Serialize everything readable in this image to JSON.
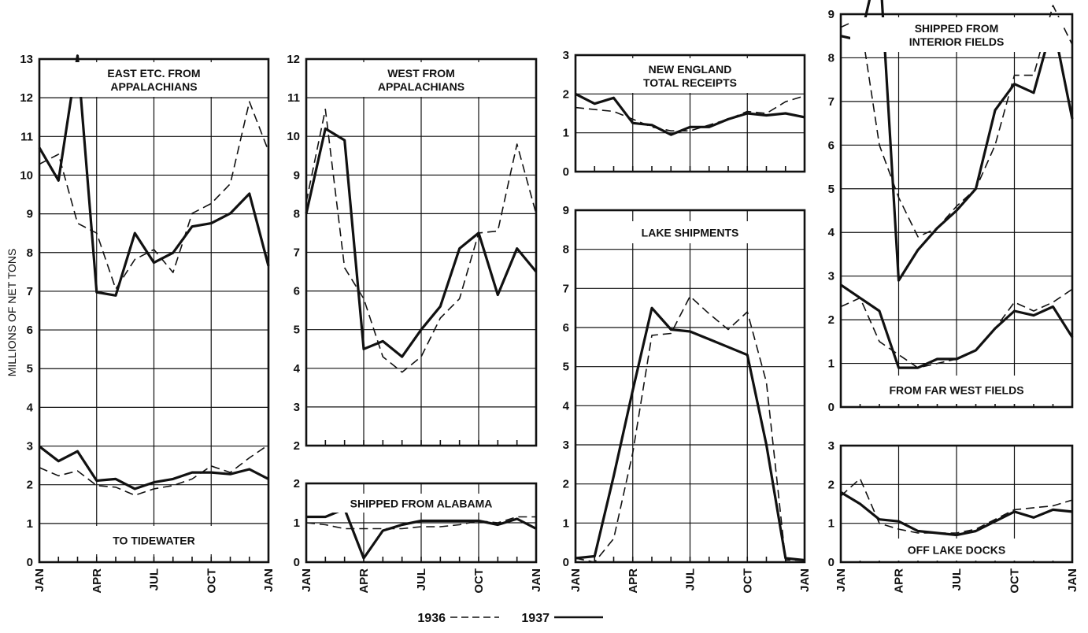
{
  "y_axis_label": "MILLIONS OF NET TONS",
  "legend": [
    {
      "label": "1936",
      "style": "dashed"
    },
    {
      "label": "1937",
      "style": "solid"
    }
  ],
  "x_tick_labels": [
    "JAN",
    "APR",
    "JUL",
    "OCT",
    "JAN"
  ],
  "chart_data": [
    {
      "type": "line",
      "title": "EAST ETC. FROM APPALACHIANS",
      "title_lines": [
        "EAST ETC. FROM",
        "APPALACHIANS"
      ],
      "months": [
        0,
        1,
        2,
        3,
        4,
        5,
        6,
        7,
        8,
        9,
        10,
        11,
        12
      ],
      "ylim": [
        6,
        13
      ],
      "yticks": [
        6,
        7,
        8,
        9,
        10,
        11,
        12,
        13
      ],
      "grid": true,
      "series": [
        {
          "name": "1936",
          "style": "dashed",
          "values": [
            9.8,
            10.1,
            8.0,
            7.7,
            6.0,
            6.9,
            7.2,
            6.5,
            8.3,
            8.6,
            9.2,
            11.7,
            10.2
          ]
        },
        {
          "name": "1937",
          "style": "solid",
          "values": [
            10.3,
            9.3,
            13.1,
            5.9,
            5.8,
            7.7,
            6.8,
            7.1,
            7.9,
            8.0,
            8.3,
            8.9,
            6.7
          ]
        }
      ]
    },
    {
      "type": "line",
      "title": "TO TIDEWATER",
      "title_lines": [
        "TO TIDEWATER"
      ],
      "months": [
        0,
        1,
        2,
        3,
        4,
        5,
        6,
        7,
        8,
        9,
        10,
        11,
        12
      ],
      "ylim": [
        0,
        5
      ],
      "yticks": [
        0,
        1,
        2,
        3,
        4,
        5
      ],
      "grid": true,
      "series": [
        {
          "name": "1936",
          "style": "dashed",
          "values": [
            2.9,
            2.65,
            2.8,
            2.35,
            2.3,
            2.05,
            2.25,
            2.35,
            2.55,
            2.95,
            2.75,
            3.2,
            3.6
          ]
        },
        {
          "name": "1937",
          "style": "solid",
          "values": [
            3.55,
            3.1,
            3.4,
            2.5,
            2.55,
            2.25,
            2.45,
            2.55,
            2.75,
            2.75,
            2.7,
            2.85,
            2.55
          ]
        }
      ]
    },
    {
      "type": "line",
      "title": "WEST FROM APPALACHIANS",
      "title_lines": [
        "WEST FROM",
        "APPALACHIANS"
      ],
      "months": [
        0,
        1,
        2,
        3,
        4,
        5,
        6,
        7,
        8,
        9,
        10,
        11,
        12
      ],
      "ylim": [
        2,
        12
      ],
      "yticks": [
        2,
        3,
        4,
        5,
        6,
        7,
        8,
        9,
        10,
        11,
        12
      ],
      "grid": true,
      "series": [
        {
          "name": "1936",
          "style": "dashed",
          "values": [
            8.3,
            10.7,
            6.6,
            5.8,
            4.3,
            3.9,
            4.3,
            5.3,
            5.8,
            7.5,
            7.55,
            9.8,
            8.0
          ]
        },
        {
          "name": "1937",
          "style": "solid",
          "values": [
            8.0,
            10.2,
            9.9,
            4.5,
            4.7,
            4.3,
            5.0,
            5.6,
            7.1,
            7.5,
            5.9,
            7.1,
            6.5
          ]
        }
      ]
    },
    {
      "type": "line",
      "title": "SHIPPED FROM ALABAMA",
      "title_lines": [
        "SHIPPED FROM ALABAMA"
      ],
      "months": [
        0,
        1,
        2,
        3,
        4,
        5,
        6,
        7,
        8,
        9,
        10,
        11,
        12
      ],
      "ylim": [
        0,
        2
      ],
      "yticks": [
        0,
        1,
        2
      ],
      "grid": true,
      "series": [
        {
          "name": "1936",
          "style": "dashed",
          "values": [
            1.0,
            0.95,
            0.85,
            0.85,
            0.85,
            0.85,
            0.9,
            0.9,
            0.95,
            1.05,
            1.0,
            1.15,
            1.15
          ]
        },
        {
          "name": "1937",
          "style": "solid",
          "values": [
            1.15,
            1.15,
            1.35,
            0.1,
            0.8,
            0.95,
            1.05,
            1.05,
            1.05,
            1.05,
            0.95,
            1.1,
            0.85
          ]
        }
      ]
    },
    {
      "type": "line",
      "title": "NEW ENGLAND TOTAL RECEIPTS",
      "title_lines": [
        "NEW ENGLAND",
        "TOTAL RECEIPTS"
      ],
      "months": [
        0,
        1,
        2,
        3,
        4,
        5,
        6,
        7,
        8,
        9,
        10,
        11,
        12
      ],
      "ylim": [
        0,
        3
      ],
      "yticks": [
        0,
        1,
        2,
        3
      ],
      "grid": true,
      "series": [
        {
          "name": "1936",
          "style": "dashed",
          "values": [
            1.65,
            1.6,
            1.55,
            1.35,
            1.15,
            1.05,
            1.05,
            1.2,
            1.35,
            1.55,
            1.5,
            1.8,
            1.95
          ]
        },
        {
          "name": "1937",
          "style": "solid",
          "values": [
            2.0,
            1.75,
            1.9,
            1.25,
            1.2,
            0.95,
            1.15,
            1.15,
            1.35,
            1.5,
            1.45,
            1.5,
            1.4
          ]
        }
      ]
    },
    {
      "type": "line",
      "title": "LAKE SHIPMENTS",
      "title_lines": [
        "LAKE SHIPMENTS"
      ],
      "months": [
        0,
        1,
        2,
        3,
        4,
        5,
        6,
        7,
        8,
        9,
        10,
        11,
        12
      ],
      "ylim": [
        0,
        9
      ],
      "yticks": [
        0,
        1,
        2,
        3,
        4,
        5,
        6,
        7,
        8,
        9
      ],
      "grid": true,
      "series": [
        {
          "name": "1936",
          "style": "dashed",
          "values": [
            0.1,
            0.0,
            0.6,
            2.8,
            5.8,
            5.85,
            6.8,
            6.35,
            5.95,
            6.4,
            4.6,
            0.05,
            0.05
          ]
        },
        {
          "name": "1937",
          "style": "solid",
          "values": [
            0.1,
            0.15,
            2.2,
            4.4,
            6.5,
            5.95,
            5.9,
            5.7,
            5.5,
            5.3,
            3.0,
            0.1,
            0.05
          ]
        }
      ]
    },
    {
      "type": "line",
      "title": "SHIPPED FROM INTERIOR FIELDS",
      "title_lines": [
        "SHIPPED FROM",
        "INTERIOR FIELDS"
      ],
      "months": [
        0,
        1,
        2,
        3,
        4,
        5,
        6,
        7,
        8,
        9,
        10,
        11,
        12
      ],
      "ylim": [
        0,
        9
      ],
      "yticks": [
        0,
        1,
        2,
        3,
        4,
        5,
        6,
        7,
        8,
        9
      ],
      "grid": true,
      "series": [
        {
          "name": "1936",
          "style": "dashed",
          "values": [
            8.7,
            8.9,
            6.0,
            4.8,
            3.9,
            4.1,
            4.6,
            5.0,
            6.0,
            7.6,
            7.6,
            9.2,
            8.3
          ]
        },
        {
          "name": "1937",
          "style": "solid",
          "values": [
            8.5,
            8.4,
            10.3,
            2.9,
            3.6,
            4.1,
            4.5,
            5.0,
            6.8,
            7.4,
            7.2,
            8.8,
            6.6
          ]
        }
      ]
    },
    {
      "type": "line",
      "title": "FROM FAR WEST FIELDS",
      "title_lines": [
        "FROM FAR WEST FIELDS"
      ],
      "months": [
        0,
        1,
        2,
        3,
        4,
        5,
        6,
        7,
        8,
        9,
        10,
        11,
        12
      ],
      "ylim": [
        0,
        9
      ],
      "yticks": [],
      "grid": true,
      "series": [
        {
          "name": "1936",
          "style": "dashed",
          "values": [
            2.3,
            2.5,
            1.5,
            1.2,
            0.9,
            1.0,
            1.1,
            1.3,
            1.8,
            2.4,
            2.2,
            2.4,
            2.7
          ]
        },
        {
          "name": "1937",
          "style": "solid",
          "values": [
            2.8,
            2.5,
            2.2,
            0.9,
            0.9,
            1.1,
            1.1,
            1.3,
            1.8,
            2.2,
            2.1,
            2.3,
            1.6
          ]
        }
      ]
    },
    {
      "type": "line",
      "title": "OFF LAKE DOCKS",
      "title_lines": [
        "OFF LAKE DOCKS"
      ],
      "months": [
        0,
        1,
        2,
        3,
        4,
        5,
        6,
        7,
        8,
        9,
        10,
        11,
        12
      ],
      "ylim": [
        0,
        3
      ],
      "yticks": [
        0,
        1,
        2,
        3
      ],
      "grid": true,
      "series": [
        {
          "name": "1936",
          "style": "dashed",
          "values": [
            1.7,
            2.15,
            1.0,
            0.85,
            0.75,
            0.75,
            0.75,
            0.85,
            1.1,
            1.35,
            1.4,
            1.45,
            1.6
          ]
        },
        {
          "name": "1937",
          "style": "solid",
          "values": [
            1.8,
            1.5,
            1.1,
            1.05,
            0.8,
            0.75,
            0.7,
            0.8,
            1.05,
            1.3,
            1.15,
            1.35,
            1.3
          ]
        }
      ]
    }
  ]
}
